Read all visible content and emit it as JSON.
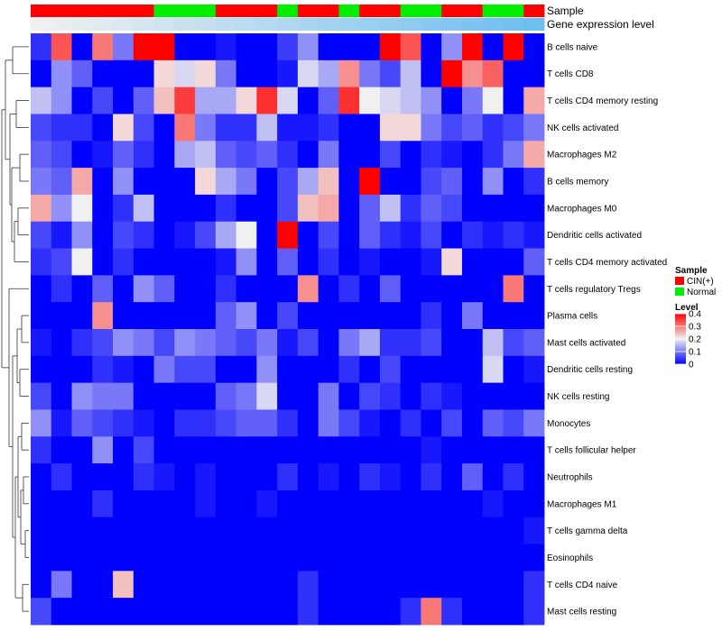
{
  "chart_data": {
    "type": "heatmap",
    "annotation_labels": [
      "Sample",
      "Gene expression level"
    ],
    "columns": 25,
    "sample_groups": [
      "CIN",
      "CIN",
      "CIN",
      "CIN",
      "CIN",
      "CIN",
      "Normal",
      "Normal",
      "Normal",
      "CIN",
      "CIN",
      "CIN",
      "Normal",
      "CIN",
      "CIN",
      "Normal",
      "CIN",
      "CIN",
      "Normal",
      "Normal",
      "CIN",
      "CIN",
      "Normal",
      "Normal",
      "CIN"
    ],
    "expression_levels": [
      0.02,
      0.04,
      0.06,
      0.08,
      0.1,
      0.12,
      0.14,
      0.16,
      0.18,
      0.2,
      0.22,
      0.24,
      0.26,
      0.28,
      0.3,
      0.32,
      0.34,
      0.36,
      0.38,
      0.4,
      0.42,
      0.44,
      0.46,
      0.48,
      0.5
    ],
    "rows": [
      "B cells naive",
      "T cells CD8",
      "T cells CD4 memory resting",
      "NK cells activated",
      "Macrophages M2",
      "B cells memory",
      "Macrophages M0",
      "Dendritic cells activated",
      "T cells CD4 memory activated",
      "T cells regulatory  Tregs",
      "Plasma cells",
      "Mast cells activated",
      "Dendritic cells resting",
      "NK cells resting",
      "Monocytes",
      "T cells follicular helper",
      "Neutrophils",
      "Macrophages M1",
      "T cells gamma delta",
      "Eosinophils",
      "T cells CD4 naive",
      "Mast cells resting"
    ],
    "values": [
      [
        0.04,
        0.33,
        0.0,
        0.3,
        0.1,
        0.4,
        0.4,
        0.0,
        0.0,
        0.02,
        0.0,
        0.0,
        0.05,
        0.12,
        0.0,
        0.0,
        0.0,
        0.4,
        0.33,
        0.0,
        0.12,
        0.4,
        0.0,
        0.4,
        0.0
      ],
      [
        0.0,
        0.12,
        0.08,
        0.0,
        0.0,
        0.0,
        0.22,
        0.18,
        0.22,
        0.1,
        0.0,
        0.0,
        0.02,
        0.18,
        0.14,
        0.28,
        0.1,
        0.06,
        0.16,
        0.0,
        0.4,
        0.28,
        0.32,
        0.0,
        0.0
      ],
      [
        0.16,
        0.12,
        0.0,
        0.06,
        0.0,
        0.08,
        0.24,
        0.35,
        0.14,
        0.14,
        0.22,
        0.36,
        0.18,
        0.0,
        0.08,
        0.36,
        0.2,
        0.18,
        0.16,
        0.12,
        0.0,
        0.1,
        0.2,
        0.0,
        0.26
      ],
      [
        0.06,
        0.04,
        0.04,
        0.0,
        0.22,
        0.06,
        0.0,
        0.3,
        0.1,
        0.04,
        0.04,
        0.16,
        0.02,
        0.02,
        0.04,
        0.0,
        0.0,
        0.22,
        0.22,
        0.1,
        0.06,
        0.08,
        0.04,
        0.06,
        0.1
      ],
      [
        0.08,
        0.06,
        0.0,
        0.02,
        0.08,
        0.04,
        0.0,
        0.14,
        0.16,
        0.08,
        0.06,
        0.08,
        0.04,
        0.0,
        0.1,
        0.0,
        0.0,
        0.06,
        0.0,
        0.04,
        0.02,
        0.0,
        0.04,
        0.1,
        0.26
      ],
      [
        0.1,
        0.08,
        0.26,
        0.0,
        0.12,
        0.0,
        0.0,
        0.0,
        0.22,
        0.14,
        0.1,
        0.0,
        0.06,
        0.14,
        0.24,
        0.0,
        0.4,
        0.0,
        0.0,
        0.06,
        0.08,
        0.0,
        0.12,
        0.0,
        0.04
      ],
      [
        0.26,
        0.12,
        0.2,
        0.0,
        0.04,
        0.16,
        0.0,
        0.0,
        0.0,
        0.04,
        0.0,
        0.0,
        0.06,
        0.24,
        0.26,
        0.0,
        0.08,
        0.16,
        0.04,
        0.08,
        0.06,
        0.0,
        0.0,
        0.0,
        0.0
      ],
      [
        0.06,
        0.02,
        0.12,
        0.0,
        0.06,
        0.04,
        0.0,
        0.02,
        0.06,
        0.14,
        0.2,
        0.0,
        0.4,
        0.0,
        0.06,
        0.0,
        0.08,
        0.04,
        0.02,
        0.06,
        0.0,
        0.04,
        0.02,
        0.04,
        0.02
      ],
      [
        0.04,
        0.06,
        0.2,
        0.0,
        0.04,
        0.0,
        0.0,
        0.0,
        0.0,
        0.02,
        0.12,
        0.0,
        0.08,
        0.0,
        0.04,
        0.0,
        0.02,
        0.0,
        0.0,
        0.02,
        0.22,
        0.0,
        0.0,
        0.0,
        0.08
      ],
      [
        0.0,
        0.04,
        0.0,
        0.08,
        0.0,
        0.12,
        0.08,
        0.0,
        0.0,
        0.04,
        0.0,
        0.0,
        0.0,
        0.28,
        0.0,
        0.04,
        0.0,
        0.08,
        0.0,
        0.0,
        0.0,
        0.0,
        0.0,
        0.3,
        0.0
      ],
      [
        0.0,
        0.0,
        0.0,
        0.28,
        0.0,
        0.0,
        0.0,
        0.0,
        0.0,
        0.08,
        0.12,
        0.0,
        0.06,
        0.0,
        0.0,
        0.0,
        0.0,
        0.0,
        0.0,
        0.04,
        0.0,
        0.1,
        0.0,
        0.0,
        0.0
      ],
      [
        0.02,
        0.0,
        0.04,
        0.06,
        0.12,
        0.1,
        0.06,
        0.12,
        0.1,
        0.08,
        0.06,
        0.1,
        0.02,
        0.06,
        0.0,
        0.1,
        0.14,
        0.04,
        0.04,
        0.06,
        0.0,
        0.0,
        0.16,
        0.06,
        0.08
      ],
      [
        0.0,
        0.0,
        0.0,
        0.04,
        0.02,
        0.0,
        0.1,
        0.06,
        0.06,
        0.0,
        0.0,
        0.12,
        0.0,
        0.0,
        0.0,
        0.04,
        0.0,
        0.06,
        0.0,
        0.0,
        0.0,
        0.0,
        0.18,
        0.0,
        0.02
      ],
      [
        0.06,
        0.0,
        0.12,
        0.1,
        0.1,
        0.0,
        0.0,
        0.0,
        0.0,
        0.08,
        0.1,
        0.18,
        0.0,
        0.0,
        0.1,
        0.0,
        0.06,
        0.04,
        0.0,
        0.04,
        0.02,
        0.0,
        0.0,
        0.0,
        0.0
      ],
      [
        0.12,
        0.02,
        0.08,
        0.06,
        0.04,
        0.02,
        0.0,
        0.04,
        0.04,
        0.06,
        0.08,
        0.08,
        0.04,
        0.0,
        0.1,
        0.06,
        0.02,
        0.0,
        0.04,
        0.0,
        0.06,
        0.0,
        0.08,
        0.06,
        0.1
      ],
      [
        0.04,
        0.0,
        0.0,
        0.12,
        0.0,
        0.06,
        0.0,
        0.0,
        0.0,
        0.0,
        0.0,
        0.0,
        0.0,
        0.0,
        0.0,
        0.0,
        0.0,
        0.0,
        0.0,
        0.02,
        0.0,
        0.0,
        0.0,
        0.0,
        0.0
      ],
      [
        0.0,
        0.04,
        0.0,
        0.0,
        0.0,
        0.04,
        0.02,
        0.0,
        0.02,
        0.0,
        0.0,
        0.0,
        0.04,
        0.0,
        0.02,
        0.0,
        0.04,
        0.02,
        0.0,
        0.04,
        0.0,
        0.08,
        0.0,
        0.04,
        0.0
      ],
      [
        0.0,
        0.0,
        0.0,
        0.04,
        0.0,
        0.0,
        0.0,
        0.0,
        0.02,
        0.0,
        0.0,
        0.02,
        0.0,
        0.0,
        0.0,
        0.0,
        0.0,
        0.0,
        0.0,
        0.0,
        0.0,
        0.0,
        0.02,
        0.0,
        0.0
      ],
      [
        0.0,
        0.0,
        0.0,
        0.0,
        0.0,
        0.0,
        0.0,
        0.0,
        0.0,
        0.0,
        0.0,
        0.0,
        0.0,
        0.0,
        0.0,
        0.0,
        0.0,
        0.0,
        0.0,
        0.0,
        0.0,
        0.0,
        0.0,
        0.0,
        0.02
      ],
      [
        0.0,
        0.0,
        0.0,
        0.0,
        0.0,
        0.0,
        0.0,
        0.0,
        0.0,
        0.0,
        0.0,
        0.0,
        0.0,
        0.0,
        0.0,
        0.0,
        0.0,
        0.0,
        0.0,
        0.0,
        0.0,
        0.0,
        0.0,
        0.0,
        0.0
      ],
      [
        0.0,
        0.1,
        0.0,
        0.0,
        0.24,
        0.0,
        0.0,
        0.0,
        0.0,
        0.0,
        0.0,
        0.0,
        0.0,
        0.04,
        0.0,
        0.0,
        0.0,
        0.0,
        0.0,
        0.0,
        0.0,
        0.0,
        0.0,
        0.0,
        0.04
      ],
      [
        0.06,
        0.0,
        0.0,
        0.0,
        0.0,
        0.0,
        0.0,
        0.0,
        0.0,
        0.0,
        0.0,
        0.0,
        0.0,
        0.04,
        0.0,
        0.0,
        0.0,
        0.0,
        0.04,
        0.3,
        0.04,
        0.0,
        0.0,
        0.0,
        0.04
      ]
    ],
    "legend": {
      "sample_title": "Sample",
      "sample_entries": [
        {
          "label": "CIN(+)",
          "color": "#ff0000"
        },
        {
          "label": "Normal",
          "color": "#00ee00"
        }
      ],
      "level_title": "Level",
      "level_ticks": [
        0.4,
        0.3,
        0.2,
        0.1,
        0
      ]
    },
    "color_scale": {
      "low": "#0000ff",
      "mid": "#f0f0f0",
      "high": "#ff0000",
      "domain": [
        0,
        0.4
      ]
    }
  }
}
